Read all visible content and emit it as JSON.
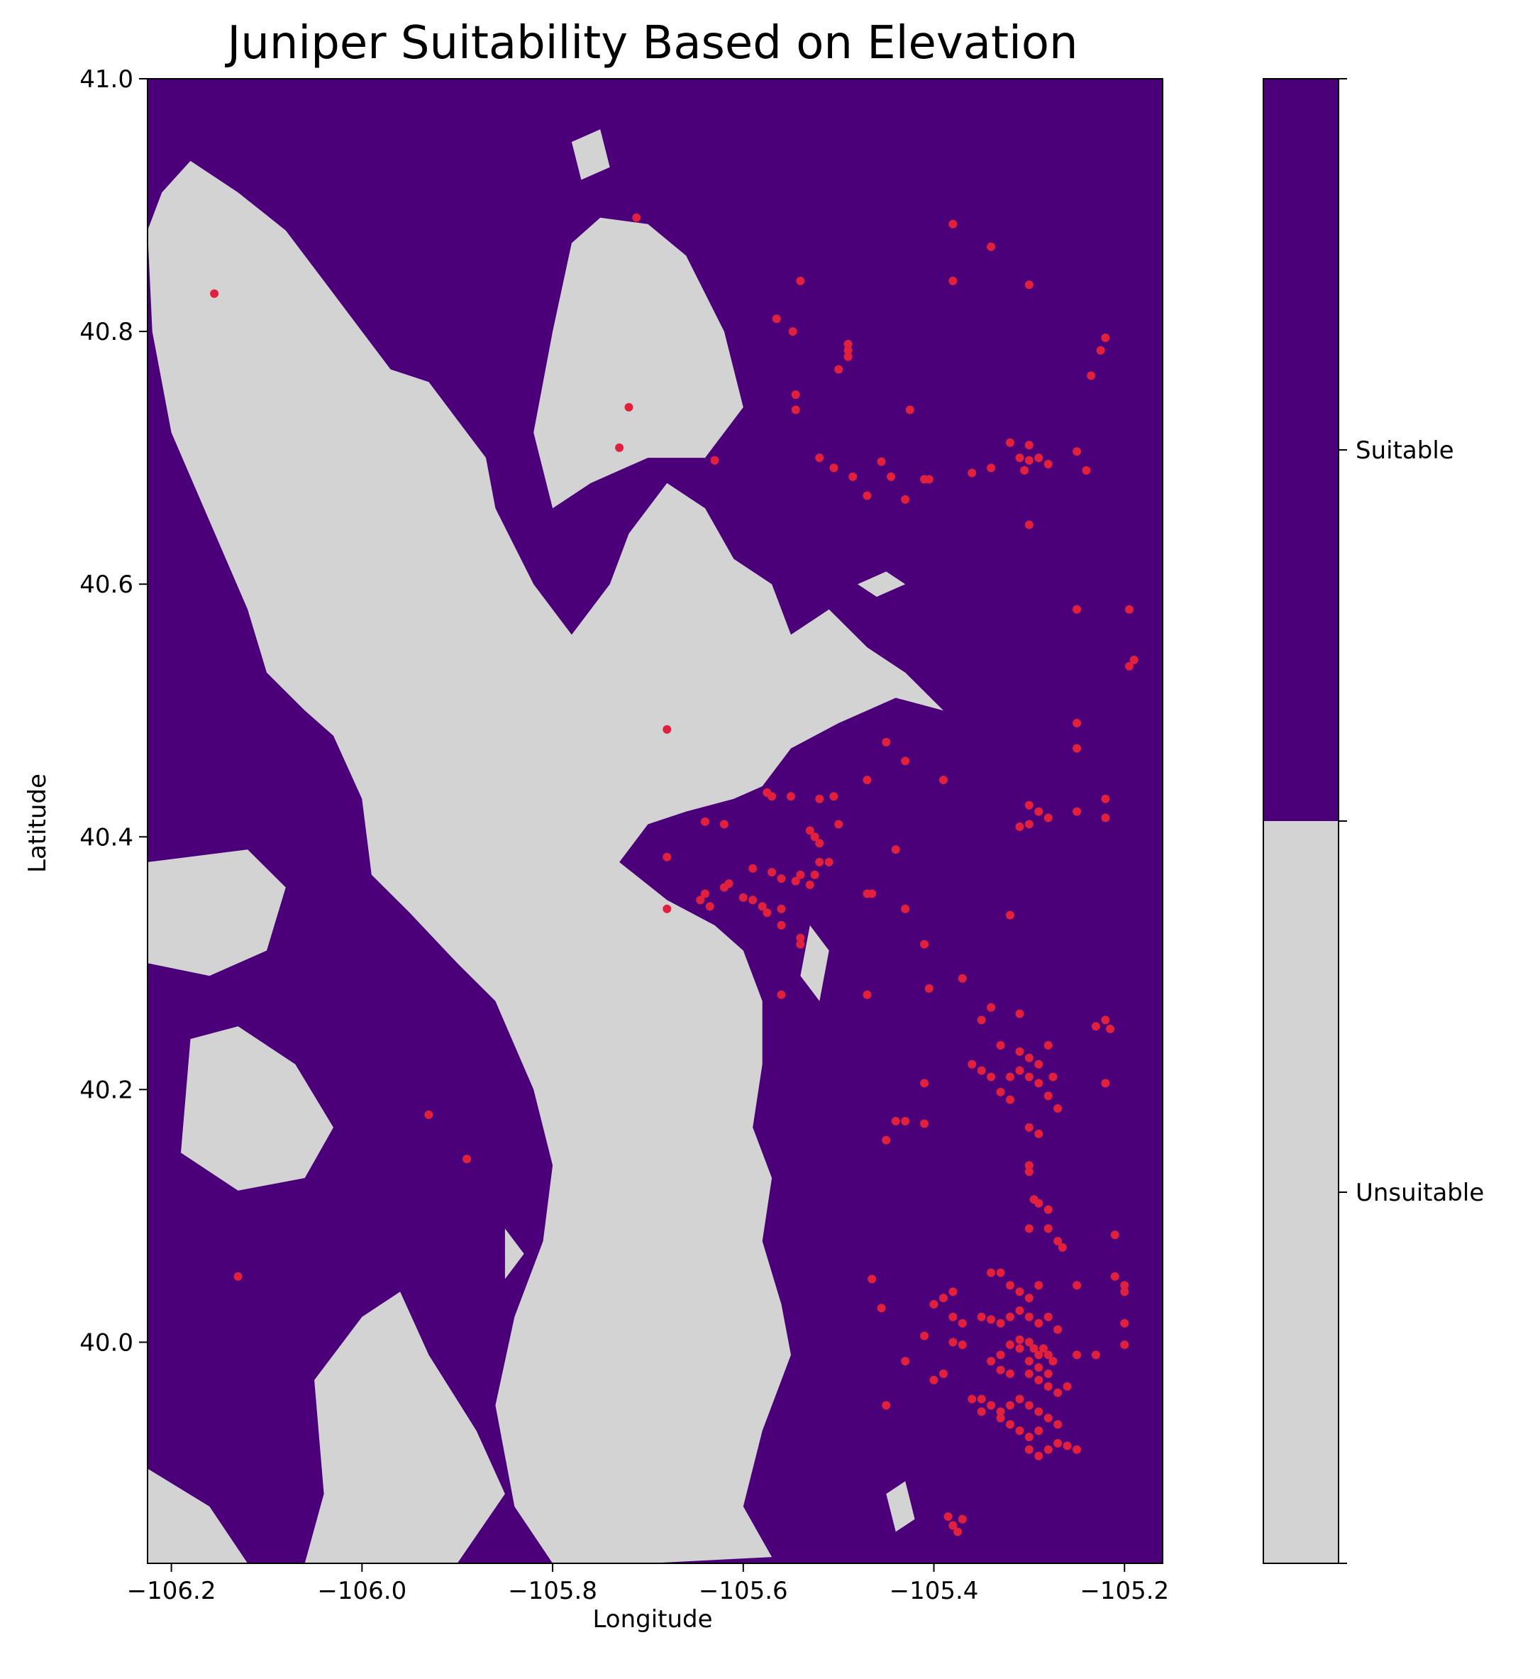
{
  "chart_data": {
    "type": "scatter",
    "title": "Juniper Suitability Based on Elevation",
    "xlabel": "Longitude",
    "ylabel": "Latitude",
    "xlim": [
      -106.225,
      -105.16
    ],
    "ylim": [
      39.825,
      41.0
    ],
    "x_ticks": [
      {
        "value": -106.2,
        "label": "−106.2"
      },
      {
        "value": -106.0,
        "label": "−106.0"
      },
      {
        "value": -105.8,
        "label": "−105.8"
      },
      {
        "value": -105.6,
        "label": "−105.6"
      },
      {
        "value": -105.4,
        "label": "−105.4"
      },
      {
        "value": -105.2,
        "label": "−105.2"
      }
    ],
    "y_ticks": [
      {
        "value": 40.0,
        "label": "40.0"
      },
      {
        "value": 40.2,
        "label": "40.2"
      },
      {
        "value": 40.4,
        "label": "40.4"
      },
      {
        "value": 40.6,
        "label": "40.6"
      },
      {
        "value": 40.8,
        "label": "40.8"
      },
      {
        "value": 41.0,
        "label": "41.0"
      }
    ],
    "colors": {
      "suitable": "#4b0079",
      "unsuitable": "#d3d3d3",
      "points": "#e0203c"
    },
    "colorbar": {
      "classes": [
        {
          "label": "Suitable",
          "color": "#4b0079"
        },
        {
          "label": "Unsuitable",
          "color": "#d3d3d3"
        }
      ]
    },
    "unsuitable_regions": [
      [
        [
          -106.21,
          40.91
        ],
        [
          -106.18,
          40.935
        ],
        [
          -106.13,
          40.91
        ],
        [
          -106.08,
          40.88
        ],
        [
          -106.04,
          40.84
        ],
        [
          -106.0,
          40.8
        ],
        [
          -105.97,
          40.77
        ],
        [
          -105.93,
          40.76
        ],
        [
          -105.9,
          40.73
        ],
        [
          -105.87,
          40.7
        ],
        [
          -105.86,
          40.66
        ],
        [
          -105.84,
          40.63
        ],
        [
          -105.82,
          40.6
        ],
        [
          -105.78,
          40.56
        ],
        [
          -105.74,
          40.6
        ],
        [
          -105.72,
          40.64
        ],
        [
          -105.68,
          40.68
        ],
        [
          -105.64,
          40.66
        ],
        [
          -105.61,
          40.62
        ],
        [
          -105.57,
          40.6
        ],
        [
          -105.55,
          40.56
        ],
        [
          -105.51,
          40.58
        ],
        [
          -105.47,
          40.55
        ],
        [
          -105.43,
          40.53
        ],
        [
          -105.39,
          40.5
        ],
        [
          -105.44,
          40.51
        ],
        [
          -105.5,
          40.49
        ],
        [
          -105.55,
          40.47
        ],
        [
          -105.58,
          40.44
        ],
        [
          -105.61,
          40.43
        ],
        [
          -105.66,
          40.42
        ],
        [
          -105.7,
          40.41
        ],
        [
          -105.73,
          40.38
        ],
        [
          -105.68,
          40.35
        ],
        [
          -105.63,
          40.33
        ],
        [
          -105.6,
          40.31
        ],
        [
          -105.58,
          40.27
        ],
        [
          -105.58,
          40.22
        ],
        [
          -105.59,
          40.17
        ],
        [
          -105.57,
          40.13
        ],
        [
          -105.58,
          40.08
        ],
        [
          -105.56,
          40.03
        ],
        [
          -105.55,
          39.99
        ],
        [
          -105.58,
          39.93
        ],
        [
          -105.6,
          39.87
        ],
        [
          -105.57,
          39.83
        ],
        [
          -105.7,
          39.825
        ],
        [
          -105.8,
          39.825
        ],
        [
          -105.84,
          39.87
        ],
        [
          -105.86,
          39.95
        ],
        [
          -105.84,
          40.02
        ],
        [
          -105.81,
          40.08
        ],
        [
          -105.8,
          40.14
        ],
        [
          -105.82,
          40.2
        ],
        [
          -105.86,
          40.27
        ],
        [
          -105.9,
          40.3
        ],
        [
          -105.95,
          40.34
        ],
        [
          -105.99,
          40.37
        ],
        [
          -106.0,
          40.43
        ],
        [
          -106.03,
          40.48
        ],
        [
          -106.06,
          40.5
        ],
        [
          -106.1,
          40.53
        ],
        [
          -106.12,
          40.58
        ],
        [
          -106.16,
          40.65
        ],
        [
          -106.2,
          40.72
        ],
        [
          -106.22,
          40.8
        ],
        [
          -106.225,
          40.88
        ]
      ],
      [
        [
          -105.78,
          40.87
        ],
        [
          -105.75,
          40.89
        ],
        [
          -105.7,
          40.885
        ],
        [
          -105.66,
          40.86
        ],
        [
          -105.62,
          40.8
        ],
        [
          -105.6,
          40.74
        ],
        [
          -105.64,
          40.7
        ],
        [
          -105.7,
          40.7
        ],
        [
          -105.76,
          40.68
        ],
        [
          -105.8,
          40.66
        ],
        [
          -105.82,
          40.72
        ],
        [
          -105.8,
          40.8
        ]
      ],
      [
        [
          -105.78,
          40.95
        ],
        [
          -105.75,
          40.96
        ],
        [
          -105.74,
          40.93
        ],
        [
          -105.77,
          40.92
        ]
      ],
      [
        [
          -106.225,
          40.38
        ],
        [
          -106.12,
          40.39
        ],
        [
          -106.08,
          40.36
        ],
        [
          -106.1,
          40.31
        ],
        [
          -106.16,
          40.29
        ],
        [
          -106.225,
          40.3
        ]
      ],
      [
        [
          -106.18,
          40.24
        ],
        [
          -106.13,
          40.25
        ],
        [
          -106.07,
          40.22
        ],
        [
          -106.03,
          40.17
        ],
        [
          -106.06,
          40.13
        ],
        [
          -106.13,
          40.12
        ],
        [
          -106.19,
          40.15
        ]
      ],
      [
        [
          -106.225,
          39.9
        ],
        [
          -106.16,
          39.87
        ],
        [
          -106.12,
          39.825
        ],
        [
          -106.225,
          39.825
        ]
      ],
      [
        [
          -106.05,
          39.97
        ],
        [
          -106.0,
          40.02
        ],
        [
          -105.96,
          40.04
        ],
        [
          -105.93,
          39.99
        ],
        [
          -105.88,
          39.93
        ],
        [
          -105.85,
          39.88
        ],
        [
          -105.9,
          39.825
        ],
        [
          -106.06,
          39.825
        ],
        [
          -106.04,
          39.88
        ]
      ],
      [
        [
          -105.48,
          40.6
        ],
        [
          -105.45,
          40.61
        ],
        [
          -105.43,
          40.6
        ],
        [
          -105.46,
          40.59
        ]
      ],
      [
        [
          -105.45,
          39.88
        ],
        [
          -105.43,
          39.89
        ],
        [
          -105.42,
          39.86
        ],
        [
          -105.44,
          39.85
        ]
      ],
      [
        [
          -105.53,
          40.33
        ],
        [
          -105.51,
          40.31
        ],
        [
          -105.52,
          40.27
        ],
        [
          -105.54,
          40.29
        ]
      ],
      [
        [
          -105.85,
          40.09
        ],
        [
          -105.83,
          40.07
        ],
        [
          -105.85,
          40.05
        ]
      ]
    ],
    "points": [
      [
        -106.155,
        40.83
      ],
      [
        -105.712,
        40.89
      ],
      [
        -105.38,
        40.885
      ],
      [
        -105.34,
        40.867
      ],
      [
        -105.3,
        40.837
      ],
      [
        -105.38,
        40.84
      ],
      [
        -105.54,
        40.84
      ],
      [
        -105.565,
        40.81
      ],
      [
        -105.548,
        40.8
      ],
      [
        -105.49,
        40.79
      ],
      [
        -105.49,
        40.785
      ],
      [
        -105.49,
        40.78
      ],
      [
        -105.5,
        40.77
      ],
      [
        -105.22,
        40.795
      ],
      [
        -105.225,
        40.785
      ],
      [
        -105.235,
        40.765
      ],
      [
        -105.72,
        40.74
      ],
      [
        -105.545,
        40.75
      ],
      [
        -105.545,
        40.738
      ],
      [
        -105.425,
        40.738
      ],
      [
        -105.73,
        40.708
      ],
      [
        -105.63,
        40.698
      ],
      [
        -105.52,
        40.7
      ],
      [
        -105.505,
        40.692
      ],
      [
        -105.485,
        40.685
      ],
      [
        -105.455,
        40.697
      ],
      [
        -105.445,
        40.685
      ],
      [
        -105.41,
        40.683
      ],
      [
        -105.405,
        40.683
      ],
      [
        -105.43,
        40.667
      ],
      [
        -105.47,
        40.67
      ],
      [
        -105.36,
        40.688
      ],
      [
        -105.34,
        40.692
      ],
      [
        -105.32,
        40.712
      ],
      [
        -105.31,
        40.7
      ],
      [
        -105.3,
        40.71
      ],
      [
        -105.3,
        40.698
      ],
      [
        -105.29,
        40.7
      ],
      [
        -105.28,
        40.695
      ],
      [
        -105.305,
        40.69
      ],
      [
        -105.25,
        40.705
      ],
      [
        -105.24,
        40.69
      ],
      [
        -105.3,
        40.647
      ],
      [
        -105.25,
        40.58
      ],
      [
        -105.195,
        40.58
      ],
      [
        -105.19,
        40.54
      ],
      [
        -105.195,
        40.535
      ],
      [
        -105.25,
        40.49
      ],
      [
        -105.25,
        40.47
      ],
      [
        -105.45,
        40.475
      ],
      [
        -105.43,
        40.46
      ],
      [
        -105.68,
        40.485
      ],
      [
        -105.39,
        40.445
      ],
      [
        -105.47,
        40.445
      ],
      [
        -105.575,
        40.435
      ],
      [
        -105.57,
        40.432
      ],
      [
        -105.55,
        40.432
      ],
      [
        -105.52,
        40.43
      ],
      [
        -105.505,
        40.432
      ],
      [
        -105.5,
        40.41
      ],
      [
        -105.3,
        40.425
      ],
      [
        -105.29,
        40.42
      ],
      [
        -105.28,
        40.415
      ],
      [
        -105.25,
        40.42
      ],
      [
        -105.22,
        40.43
      ],
      [
        -105.22,
        40.415
      ],
      [
        -105.3,
        40.41
      ],
      [
        -105.31,
        40.408
      ],
      [
        -105.64,
        40.412
      ],
      [
        -105.62,
        40.41
      ],
      [
        -105.53,
        40.405
      ],
      [
        -105.525,
        40.4
      ],
      [
        -105.52,
        40.395
      ],
      [
        -105.51,
        40.38
      ],
      [
        -105.52,
        40.38
      ],
      [
        -105.525,
        40.37
      ],
      [
        -105.44,
        40.39
      ],
      [
        -105.68,
        40.384
      ],
      [
        -105.59,
        40.375
      ],
      [
        -105.57,
        40.372
      ],
      [
        -105.56,
        40.367
      ],
      [
        -105.545,
        40.365
      ],
      [
        -105.54,
        40.37
      ],
      [
        -105.53,
        40.362
      ],
      [
        -105.64,
        40.355
      ],
      [
        -105.645,
        40.35
      ],
      [
        -105.635,
        40.345
      ],
      [
        -105.62,
        40.36
      ],
      [
        -105.615,
        40.363
      ],
      [
        -105.6,
        40.352
      ],
      [
        -105.59,
        40.35
      ],
      [
        -105.58,
        40.345
      ],
      [
        -105.575,
        40.34
      ],
      [
        -105.56,
        40.343
      ],
      [
        -105.47,
        40.355
      ],
      [
        -105.465,
        40.355
      ],
      [
        -105.68,
        40.343
      ],
      [
        -105.43,
        40.343
      ],
      [
        -105.56,
        40.33
      ],
      [
        -105.54,
        40.32
      ],
      [
        -105.54,
        40.315
      ],
      [
        -105.41,
        40.315
      ],
      [
        -105.47,
        40.275
      ],
      [
        -105.56,
        40.275
      ],
      [
        -105.405,
        40.28
      ],
      [
        -105.32,
        40.338
      ],
      [
        -105.37,
        40.288
      ],
      [
        -105.34,
        40.265
      ],
      [
        -105.31,
        40.26
      ],
      [
        -105.35,
        40.255
      ],
      [
        -105.22,
        40.255
      ],
      [
        -105.23,
        40.25
      ],
      [
        -105.215,
        40.248
      ],
      [
        -105.33,
        40.235
      ],
      [
        -105.31,
        40.23
      ],
      [
        -105.3,
        40.225
      ],
      [
        -105.29,
        40.22
      ],
      [
        -105.28,
        40.235
      ],
      [
        -105.36,
        40.22
      ],
      [
        -105.35,
        40.215
      ],
      [
        -105.34,
        40.21
      ],
      [
        -105.32,
        40.21
      ],
      [
        -105.31,
        40.215
      ],
      [
        -105.3,
        40.21
      ],
      [
        -105.29,
        40.205
      ],
      [
        -105.275,
        40.21
      ],
      [
        -105.33,
        40.198
      ],
      [
        -105.32,
        40.192
      ],
      [
        -105.28,
        40.195
      ],
      [
        -105.27,
        40.185
      ],
      [
        -105.41,
        40.205
      ],
      [
        -105.22,
        40.205
      ],
      [
        -105.44,
        40.175
      ],
      [
        -105.43,
        40.175
      ],
      [
        -105.41,
        40.173
      ],
      [
        -105.45,
        40.16
      ],
      [
        -105.3,
        40.17
      ],
      [
        -105.29,
        40.165
      ],
      [
        -105.3,
        40.14
      ],
      [
        -105.3,
        40.135
      ],
      [
        -105.29,
        40.11
      ],
      [
        -105.28,
        40.105
      ],
      [
        -105.295,
        40.113
      ],
      [
        -105.28,
        40.09
      ],
      [
        -105.3,
        40.09
      ],
      [
        -105.27,
        40.08
      ],
      [
        -105.265,
        40.075
      ],
      [
        -105.21,
        40.085
      ],
      [
        -105.93,
        40.18
      ],
      [
        -105.89,
        40.145
      ],
      [
        -106.13,
        40.052
      ],
      [
        -105.465,
        40.05
      ],
      [
        -105.455,
        40.027
      ],
      [
        -105.34,
        40.055
      ],
      [
        -105.33,
        40.055
      ],
      [
        -105.32,
        40.045
      ],
      [
        -105.31,
        40.04
      ],
      [
        -105.3,
        40.035
      ],
      [
        -105.29,
        40.045
      ],
      [
        -105.25,
        40.045
      ],
      [
        -105.21,
        40.052
      ],
      [
        -105.2,
        40.045
      ],
      [
        -105.2,
        40.04
      ],
      [
        -105.38,
        40.04
      ],
      [
        -105.39,
        40.035
      ],
      [
        -105.4,
        40.03
      ],
      [
        -105.35,
        40.02
      ],
      [
        -105.34,
        40.018
      ],
      [
        -105.33,
        40.015
      ],
      [
        -105.32,
        40.02
      ],
      [
        -105.31,
        40.025
      ],
      [
        -105.3,
        40.02
      ],
      [
        -105.29,
        40.015
      ],
      [
        -105.28,
        40.02
      ],
      [
        -105.27,
        40.01
      ],
      [
        -105.38,
        40.02
      ],
      [
        -105.37,
        40.015
      ],
      [
        -105.2,
        40.015
      ],
      [
        -105.31,
        40.002
      ],
      [
        -105.3,
        40.0
      ],
      [
        -105.295,
        39.995
      ],
      [
        -105.29,
        39.99
      ],
      [
        -105.285,
        39.995
      ],
      [
        -105.28,
        39.99
      ],
      [
        -105.275,
        39.985
      ],
      [
        -105.31,
        39.995
      ],
      [
        -105.32,
        39.998
      ],
      [
        -105.3,
        39.985
      ],
      [
        -105.29,
        39.98
      ],
      [
        -105.28,
        39.975
      ],
      [
        -105.38,
        40.0
      ],
      [
        -105.37,
        39.998
      ],
      [
        -105.41,
        40.005
      ],
      [
        -105.2,
        39.998
      ],
      [
        -105.33,
        39.99
      ],
      [
        -105.34,
        39.985
      ],
      [
        -105.33,
        39.978
      ],
      [
        -105.32,
        39.975
      ],
      [
        -105.3,
        39.975
      ],
      [
        -105.29,
        39.97
      ],
      [
        -105.28,
        39.965
      ],
      [
        -105.27,
        39.96
      ],
      [
        -105.26,
        39.965
      ],
      [
        -105.25,
        39.99
      ],
      [
        -105.23,
        39.99
      ],
      [
        -105.43,
        39.985
      ],
      [
        -105.4,
        39.97
      ],
      [
        -105.39,
        39.975
      ],
      [
        -105.35,
        39.955
      ],
      [
        -105.34,
        39.95
      ],
      [
        -105.33,
        39.945
      ],
      [
        -105.32,
        39.95
      ],
      [
        -105.31,
        39.955
      ],
      [
        -105.3,
        39.95
      ],
      [
        -105.29,
        39.945
      ],
      [
        -105.28,
        39.94
      ],
      [
        -105.27,
        39.935
      ],
      [
        -105.29,
        39.93
      ],
      [
        -105.3,
        39.925
      ],
      [
        -105.31,
        39.93
      ],
      [
        -105.32,
        39.935
      ],
      [
        -105.33,
        39.94
      ],
      [
        -105.3,
        39.915
      ],
      [
        -105.29,
        39.91
      ],
      [
        -105.28,
        39.915
      ],
      [
        -105.27,
        39.92
      ],
      [
        -105.26,
        39.918
      ],
      [
        -105.25,
        39.915
      ],
      [
        -105.35,
        39.945
      ],
      [
        -105.36,
        39.955
      ],
      [
        -105.45,
        39.95
      ],
      [
        -105.38,
        39.855
      ],
      [
        -105.375,
        39.85
      ],
      [
        -105.37,
        39.86
      ],
      [
        -105.385,
        39.862
      ]
    ]
  }
}
